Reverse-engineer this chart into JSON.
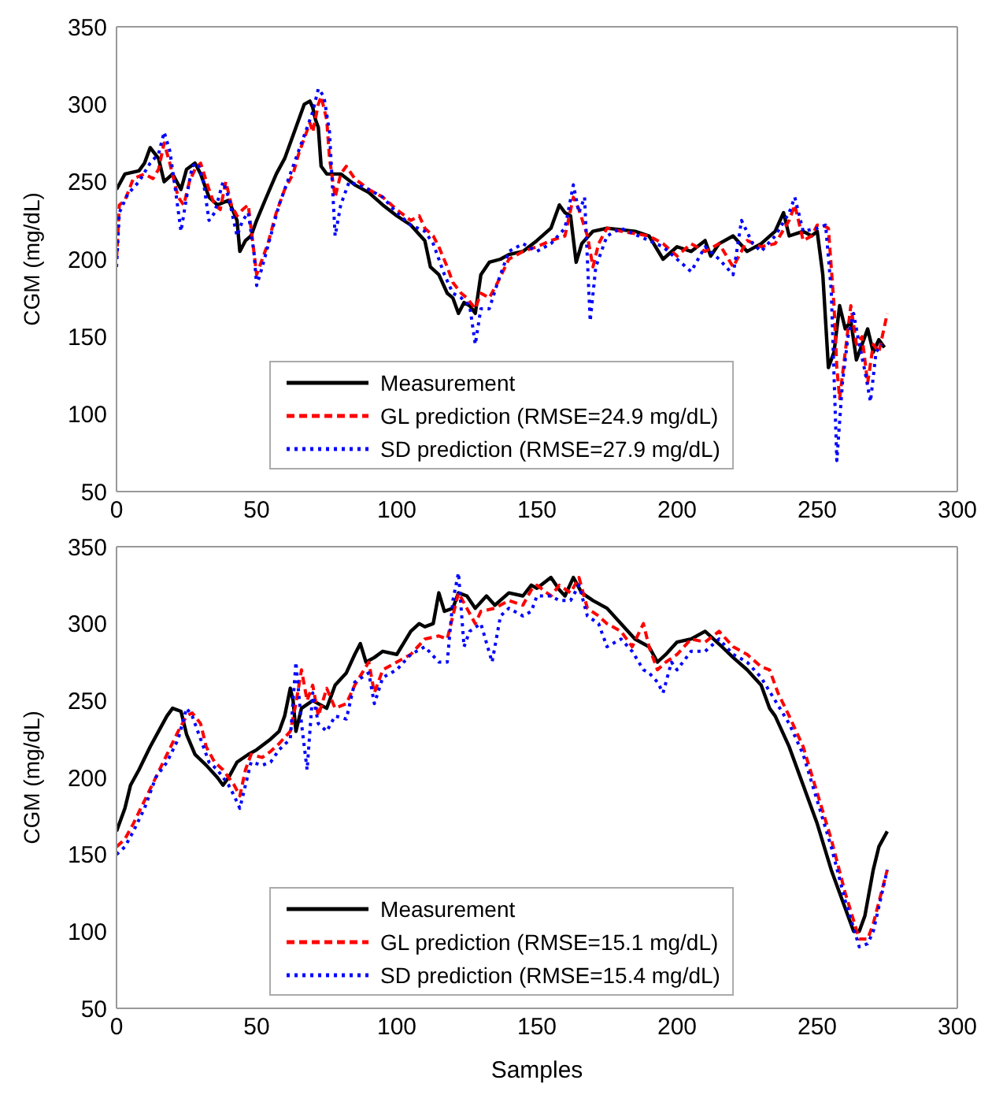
{
  "chart_data": [
    {
      "type": "line",
      "ylabel": "CGM (mg/dL)",
      "xlim": [
        0,
        300
      ],
      "xticks": [
        0,
        50,
        100,
        150,
        200,
        250,
        300
      ],
      "ylim": [
        50,
        350
      ],
      "yticks": [
        50,
        100,
        150,
        200,
        250,
        300,
        350
      ],
      "grid": false,
      "legend": "bottom",
      "series": [
        {
          "name": "Measurement",
          "color": "#000000",
          "line_style": "solid",
          "x": [
            0,
            3,
            8,
            10,
            12,
            15,
            17,
            20,
            23,
            25,
            28,
            30,
            33,
            36,
            40,
            43,
            44,
            46,
            48,
            50,
            53,
            57,
            60,
            63,
            65,
            67,
            69,
            70,
            71,
            72,
            73,
            75,
            80,
            85,
            90,
            95,
            100,
            105,
            110,
            112,
            115,
            118,
            120,
            122,
            124,
            126,
            128,
            130,
            133,
            137,
            140,
            145,
            150,
            155,
            158,
            160,
            162,
            164,
            166,
            170,
            175,
            185,
            190,
            195,
            200,
            205,
            210,
            212,
            215,
            220,
            225,
            230,
            235,
            238,
            240,
            245,
            248,
            250,
            252,
            254,
            256,
            258,
            260,
            262,
            264,
            266,
            268,
            270,
            272,
            274
          ],
          "values": [
            245,
            255,
            257,
            262,
            272,
            265,
            250,
            255,
            245,
            258,
            262,
            255,
            240,
            235,
            238,
            225,
            205,
            212,
            215,
            225,
            238,
            255,
            265,
            280,
            290,
            300,
            302,
            298,
            290,
            285,
            260,
            255,
            255,
            248,
            243,
            235,
            228,
            222,
            212,
            195,
            190,
            178,
            175,
            165,
            172,
            170,
            165,
            190,
            198,
            200,
            203,
            205,
            212,
            220,
            235,
            230,
            228,
            198,
            210,
            218,
            220,
            218,
            215,
            200,
            208,
            205,
            212,
            202,
            210,
            215,
            205,
            210,
            218,
            230,
            215,
            218,
            215,
            218,
            190,
            130,
            140,
            170,
            155,
            160,
            135,
            145,
            155,
            140,
            148,
            143
          ]
        },
        {
          "name": "GL prediction (RMSE=24.9 mg/dL)",
          "color": "#ff0000",
          "line_style": "dashed",
          "x": [
            0,
            1,
            3,
            6,
            10,
            13,
            15,
            17,
            19,
            22,
            24,
            26,
            28,
            30,
            33,
            35,
            37,
            39,
            41,
            43,
            45,
            47,
            49,
            50,
            52,
            54,
            57,
            60,
            63,
            65,
            67,
            69,
            70,
            72,
            73,
            75,
            76,
            78,
            80,
            82,
            85,
            90,
            95,
            100,
            105,
            108,
            110,
            113,
            115,
            118,
            120,
            123,
            125,
            128,
            130,
            133,
            136,
            140,
            145,
            150,
            155,
            160,
            163,
            165,
            168,
            170,
            172,
            175,
            180,
            190,
            195,
            200,
            205,
            210,
            215,
            220,
            225,
            230,
            235,
            240,
            242,
            245,
            248,
            250,
            252,
            254,
            256,
            257,
            258,
            260,
            262,
            264,
            266,
            268,
            270,
            272,
            275
          ],
          "values": [
            200,
            235,
            238,
            252,
            255,
            252,
            258,
            275,
            262,
            240,
            235,
            250,
            258,
            262,
            245,
            235,
            232,
            250,
            235,
            228,
            232,
            235,
            205,
            190,
            200,
            210,
            230,
            245,
            255,
            268,
            278,
            288,
            282,
            300,
            305,
            290,
            265,
            240,
            255,
            260,
            252,
            245,
            240,
            232,
            225,
            228,
            220,
            215,
            208,
            195,
            185,
            178,
            175,
            168,
            178,
            175,
            185,
            200,
            205,
            208,
            212,
            215,
            240,
            232,
            215,
            195,
            210,
            220,
            218,
            215,
            210,
            202,
            210,
            205,
            210,
            195,
            212,
            208,
            210,
            225,
            235,
            212,
            215,
            222,
            222,
            220,
            170,
            130,
            110,
            140,
            170,
            145,
            150,
            120,
            145,
            140,
            165
          ]
        },
        {
          "name": "SD prediction (RMSE=27.9 mg/dL)",
          "color": "#0000ff",
          "line_style": "dotted",
          "x": [
            0,
            1,
            4,
            8,
            12,
            15,
            17,
            19,
            21,
            23,
            25,
            27,
            29,
            31,
            33,
            35,
            38,
            40,
            43,
            45,
            47,
            49,
            50,
            52,
            55,
            58,
            62,
            65,
            68,
            70,
            72,
            74,
            76,
            78,
            80,
            83,
            86,
            90,
            95,
            100,
            105,
            110,
            113,
            117,
            120,
            123,
            126,
            128,
            130,
            133,
            136,
            140,
            145,
            150,
            155,
            160,
            163,
            165,
            167,
            169,
            171,
            175,
            180,
            190,
            195,
            200,
            205,
            210,
            215,
            220,
            223,
            227,
            230,
            235,
            240,
            242,
            245,
            250,
            253,
            255,
            257,
            259,
            261,
            263,
            265,
            267,
            269,
            271,
            273
          ],
          "values": [
            195,
            230,
            242,
            250,
            262,
            268,
            282,
            270,
            245,
            218,
            240,
            260,
            262,
            250,
            225,
            230,
            250,
            240,
            215,
            225,
            230,
            205,
            183,
            195,
            215,
            235,
            255,
            270,
            285,
            295,
            310,
            305,
            282,
            215,
            235,
            250,
            248,
            245,
            240,
            230,
            222,
            218,
            210,
            190,
            178,
            175,
            170,
            145,
            168,
            168,
            185,
            205,
            210,
            205,
            210,
            220,
            248,
            230,
            240,
            160,
            195,
            215,
            220,
            212,
            208,
            200,
            192,
            208,
            200,
            190,
            225,
            210,
            205,
            215,
            230,
            240,
            218,
            220,
            222,
            180,
            70,
            120,
            150,
            165,
            145,
            128,
            108,
            140,
            145
          ]
        }
      ]
    },
    {
      "type": "line",
      "xlabel": "Samples",
      "ylabel": "CGM (mg/dL)",
      "xlim": [
        0,
        300
      ],
      "xticks": [
        0,
        50,
        100,
        150,
        200,
        250,
        300
      ],
      "ylim": [
        50,
        350
      ],
      "yticks": [
        50,
        100,
        150,
        200,
        250,
        300,
        350
      ],
      "grid": false,
      "legend": "bottom",
      "series": [
        {
          "name": "Measurement",
          "color": "#000000",
          "line_style": "solid",
          "x": [
            0,
            3,
            5,
            8,
            12,
            15,
            18,
            20,
            23,
            25,
            28,
            32,
            36,
            38,
            40,
            43,
            47,
            50,
            55,
            58,
            60,
            62,
            63,
            64,
            66,
            70,
            75,
            78,
            82,
            85,
            87,
            89,
            92,
            95,
            100,
            105,
            108,
            110,
            113,
            115,
            117,
            120,
            122,
            125,
            128,
            132,
            135,
            140,
            145,
            148,
            150,
            155,
            158,
            160,
            163,
            166,
            170,
            175,
            180,
            185,
            190,
            193,
            196,
            200,
            205,
            210,
            213,
            216,
            220,
            225,
            230,
            233,
            235,
            240,
            245,
            250,
            255,
            260,
            263,
            265,
            267,
            270,
            272,
            275
          ],
          "values": [
            165,
            180,
            195,
            205,
            220,
            230,
            240,
            245,
            243,
            228,
            215,
            208,
            200,
            195,
            200,
            210,
            215,
            218,
            225,
            230,
            240,
            258,
            250,
            230,
            245,
            250,
            245,
            260,
            268,
            280,
            287,
            275,
            278,
            282,
            280,
            295,
            300,
            298,
            300,
            320,
            308,
            310,
            320,
            318,
            310,
            318,
            312,
            320,
            318,
            325,
            323,
            330,
            322,
            318,
            330,
            320,
            315,
            310,
            300,
            290,
            285,
            275,
            280,
            288,
            290,
            295,
            290,
            285,
            278,
            270,
            260,
            245,
            240,
            220,
            195,
            170,
            140,
            115,
            100,
            100,
            110,
            140,
            155,
            165
          ]
        },
        {
          "name": "GL prediction (RMSE=15.1 mg/dL)",
          "color": "#ff0000",
          "line_style": "dashed",
          "x": [
            0,
            3,
            6,
            10,
            14,
            18,
            22,
            25,
            27,
            30,
            32,
            35,
            38,
            40,
            42,
            44,
            46,
            48,
            52,
            55,
            58,
            62,
            64,
            66,
            68,
            70,
            72,
            75,
            78,
            82,
            85,
            90,
            92,
            95,
            100,
            105,
            110,
            115,
            118,
            120,
            122,
            125,
            128,
            130,
            135,
            140,
            145,
            148,
            150,
            155,
            158,
            162,
            165,
            168,
            172,
            175,
            180,
            184,
            188,
            190,
            193,
            196,
            200,
            205,
            210,
            215,
            220,
            225,
            230,
            233,
            236,
            240,
            245,
            250,
            255,
            260,
            265,
            268,
            270,
            275
          ],
          "values": [
            155,
            160,
            170,
            185,
            200,
            215,
            230,
            240,
            242,
            235,
            220,
            210,
            205,
            200,
            195,
            188,
            205,
            215,
            213,
            217,
            222,
            230,
            248,
            270,
            250,
            260,
            240,
            258,
            245,
            248,
            260,
            275,
            255,
            270,
            275,
            280,
            290,
            292,
            290,
            305,
            320,
            310,
            300,
            308,
            310,
            315,
            312,
            322,
            325,
            318,
            325,
            320,
            330,
            310,
            305,
            300,
            295,
            285,
            300,
            285,
            270,
            275,
            280,
            290,
            288,
            295,
            285,
            280,
            272,
            270,
            255,
            240,
            220,
            190,
            160,
            125,
            95,
            95,
            105,
            140
          ]
        },
        {
          "name": "SD prediction (RMSE=15.4 mg/dL)",
          "color": "#0000ff",
          "line_style": "dotted",
          "x": [
            0,
            3,
            6,
            10,
            14,
            18,
            22,
            25,
            27,
            30,
            33,
            36,
            40,
            42,
            44,
            46,
            48,
            52,
            55,
            58,
            62,
            64,
            66,
            68,
            70,
            72,
            75,
            78,
            82,
            85,
            90,
            92,
            95,
            100,
            105,
            110,
            115,
            118,
            120,
            122,
            124,
            126,
            130,
            134,
            137,
            140,
            145,
            148,
            150,
            155,
            158,
            162,
            165,
            168,
            172,
            175,
            180,
            184,
            188,
            190,
            193,
            195,
            198,
            200,
            205,
            210,
            215,
            220,
            225,
            230,
            235,
            240,
            245,
            250,
            255,
            260,
            265,
            268,
            270,
            275
          ],
          "values": [
            150,
            155,
            165,
            180,
            200,
            210,
            225,
            245,
            240,
            225,
            210,
            205,
            195,
            188,
            180,
            195,
            210,
            208,
            210,
            218,
            225,
            275,
            235,
            205,
            255,
            235,
            230,
            240,
            238,
            262,
            268,
            248,
            265,
            270,
            280,
            285,
            275,
            275,
            315,
            333,
            285,
            295,
            300,
            275,
            305,
            310,
            305,
            308,
            318,
            318,
            315,
            315,
            325,
            305,
            300,
            285,
            290,
            282,
            270,
            268,
            262,
            255,
            275,
            270,
            282,
            282,
            290,
            280,
            275,
            265,
            250,
            235,
            215,
            185,
            155,
            120,
            90,
            92,
            100,
            140
          ]
        }
      ]
    }
  ]
}
